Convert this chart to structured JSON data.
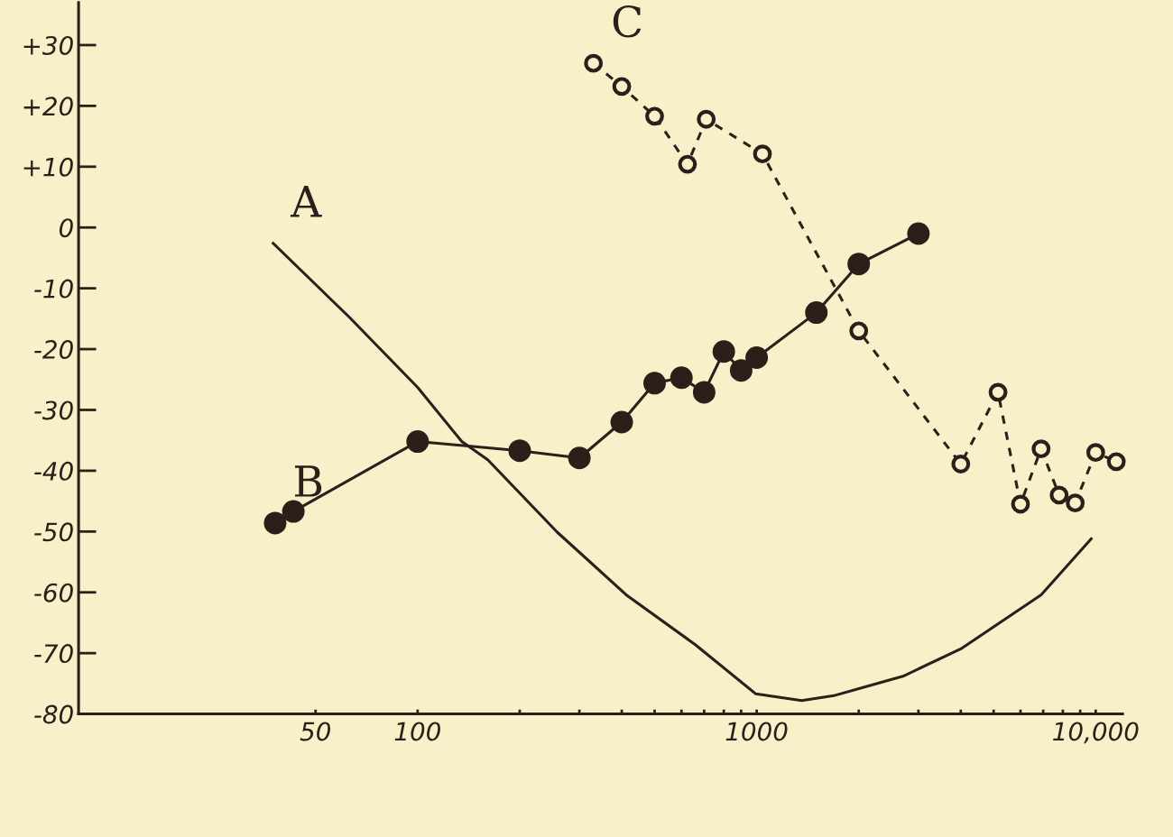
{
  "chart_data": {
    "type": "line",
    "log": "x",
    "grid": false,
    "legend": false,
    "xlim": [
      10,
      12000
    ],
    "ylim": [
      -80,
      37
    ],
    "xticks": [
      50,
      100,
      {
        "value": 200,
        "label": null
      },
      {
        "value": 300,
        "label": null
      },
      {
        "value": 400,
        "label": null
      },
      {
        "value": 500,
        "label": null
      },
      {
        "value": 600,
        "label": null
      },
      {
        "value": 700,
        "label": null
      },
      {
        "value": 800,
        "label": null
      },
      {
        "value": 900,
        "label": null
      },
      1000,
      {
        "value": 2000,
        "label": null
      },
      {
        "value": 3000,
        "label": null
      },
      {
        "value": 4000,
        "label": null
      },
      {
        "value": 5000,
        "label": null
      },
      {
        "value": 6000,
        "label": null
      },
      {
        "value": 7000,
        "label": null
      },
      {
        "value": 8000,
        "label": null
      },
      {
        "value": 9000,
        "label": null
      },
      {
        "value": 10000,
        "label": "10,000"
      }
    ],
    "yticks": [
      {
        "value": 30,
        "label": "+30"
      },
      {
        "value": 20,
        "label": "+20"
      },
      {
        "value": 10,
        "label": "+10"
      },
      0,
      -10,
      -20,
      -30,
      -40,
      -50,
      -60,
      -70,
      -80
    ],
    "series": [
      {
        "name": "A",
        "color": "#2a2019",
        "marker": "none",
        "line_style": "solid",
        "x": [
          37.5,
          63,
          100,
          135,
          161,
          258,
          412,
          659,
          994,
          1358,
          1687,
          2700,
          4000,
          6906,
          9700
        ],
        "values": [
          -2.6,
          -14.8,
          -26.3,
          -35.2,
          -38.2,
          -50.1,
          -60.4,
          -68.6,
          -76.7,
          -77.8,
          -77.0,
          -73.8,
          -69.3,
          -60.4,
          -51.2
        ]
      },
      {
        "name": "B",
        "color": "#2a2019",
        "marker": "circle",
        "line_style": "solid",
        "x": [
          38,
          43,
          100,
          200,
          300,
          400,
          500,
          600,
          700,
          800,
          900,
          1000,
          1500,
          2000,
          3000
        ],
        "values": [
          -48.6,
          -46.7,
          -35.2,
          -36.7,
          -37.9,
          -32.0,
          -25.6,
          -24.7,
          -27.1,
          -20.4,
          -23.5,
          -21.4,
          -14.0,
          -6.0,
          -1.0
        ]
      },
      {
        "name": "C",
        "color": "#2a2019",
        "marker": "circle",
        "line_style": "dashed",
        "x": [
          330,
          400,
          500,
          625,
          710,
          1040,
          2000,
          4000,
          5150,
          6000,
          6900,
          7800,
          8700,
          10000,
          11500
        ],
        "values": [
          27.0,
          23.2,
          18.3,
          10.4,
          17.8,
          12.1,
          -17.0,
          -38.9,
          -27.1,
          -45.5,
          -36.4,
          -44.0,
          -45.3,
          -37.0,
          -38.5
        ]
      }
    ]
  }
}
